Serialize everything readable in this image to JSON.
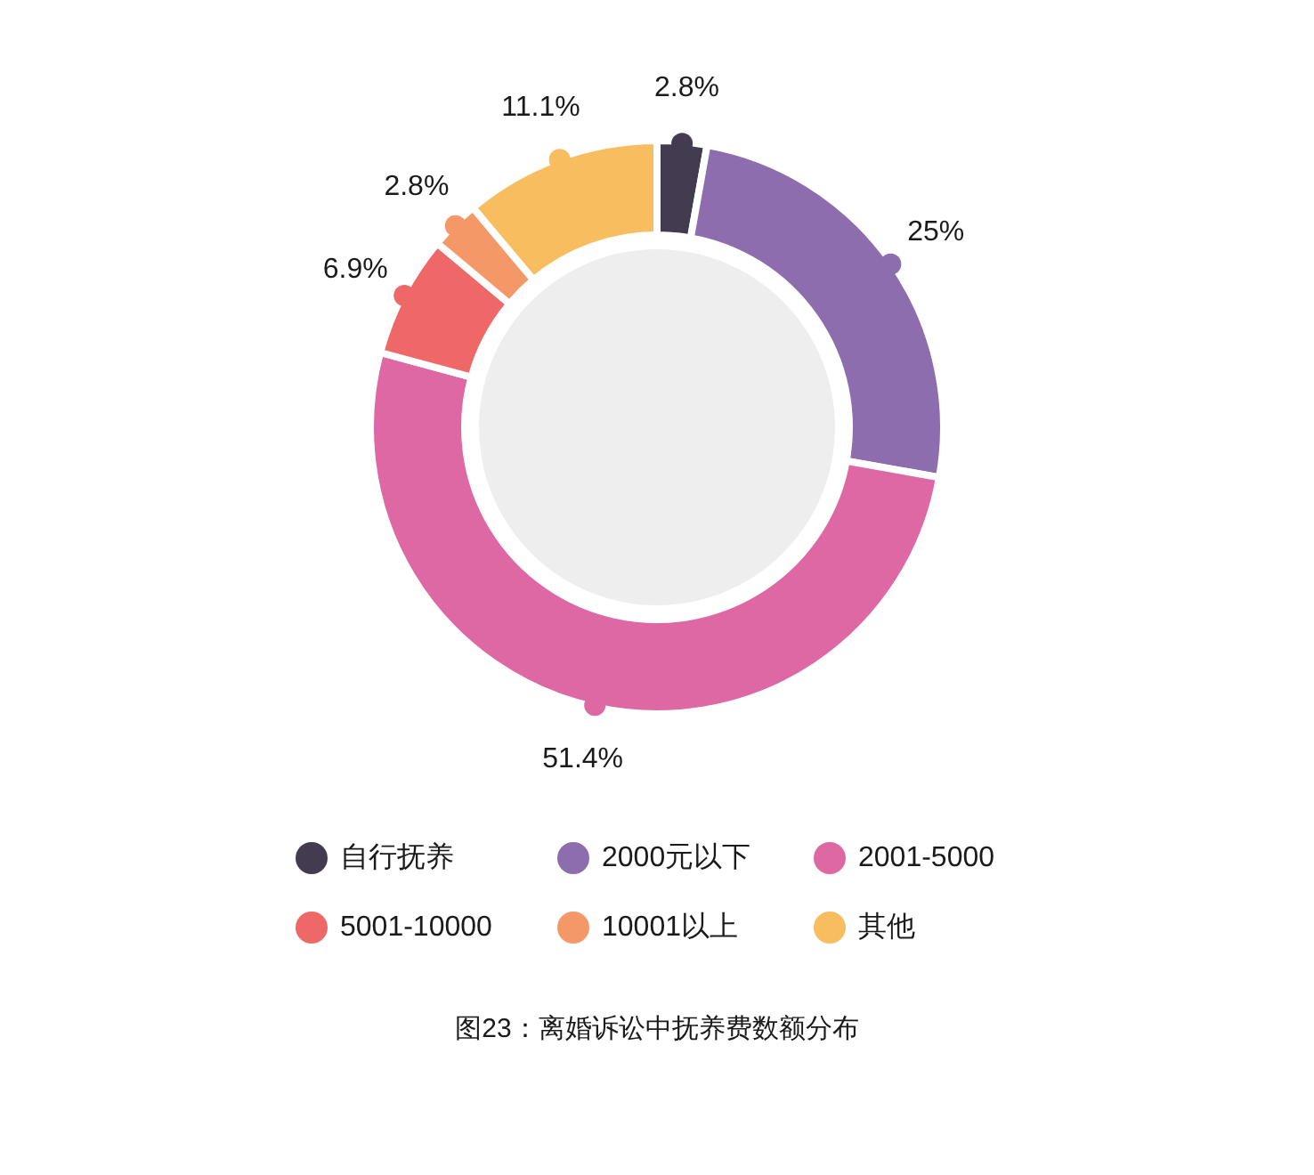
{
  "chart_data": {
    "type": "donut",
    "title": "图23：离婚诉讼中抚养费数额分布",
    "categories": [
      "自行抚养",
      "2000元以下",
      "2001-5000",
      "5001-10000",
      "10001以上",
      "其他"
    ],
    "values": [
      2.8,
      25,
      51.4,
      6.9,
      2.8,
      11.1
    ],
    "colors": [
      "#433b4f",
      "#8e6dae",
      "#de68a4",
      "#ee6868",
      "#f39866",
      "#f8bd5f"
    ],
    "value_labels": [
      "2.8%",
      "25%",
      "51.4%",
      "6.9%",
      "2.8%",
      "11.1%"
    ],
    "legend": "bottom"
  }
}
